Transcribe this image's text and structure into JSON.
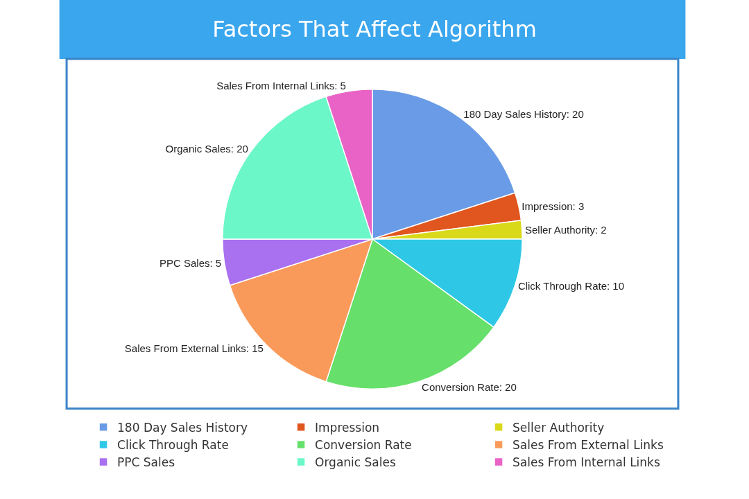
{
  "chart_data": {
    "type": "pie",
    "title": "Factors That Affect Algorithm",
    "categories": [
      "180 Day Sales History",
      "Impression",
      "Seller Authority",
      "Click Through Rate",
      "Conversion Rate",
      "Sales From External Links",
      "PPC Sales",
      "Organic Sales",
      "Sales From Internal Links"
    ],
    "values": [
      20,
      3,
      2,
      10,
      20,
      15,
      5,
      20,
      5
    ],
    "colors": [
      "#6a9be6",
      "#e0561e",
      "#d9d91a",
      "#2ec8e6",
      "#66e06a",
      "#f99a5a",
      "#a970ef",
      "#6cf7c8",
      "#e963c6"
    ],
    "value_labels": [
      "180 Day Sales History: 20",
      "Impression: 3",
      "Seller Authority: 2",
      "Click Through Rate: 10",
      "Conversion Rate: 20",
      "Sales From External Links: 15",
      "PPC Sales: 5",
      "Organic Sales: 20",
      "Sales From Internal Links: 5"
    ],
    "legend": "bottom"
  }
}
